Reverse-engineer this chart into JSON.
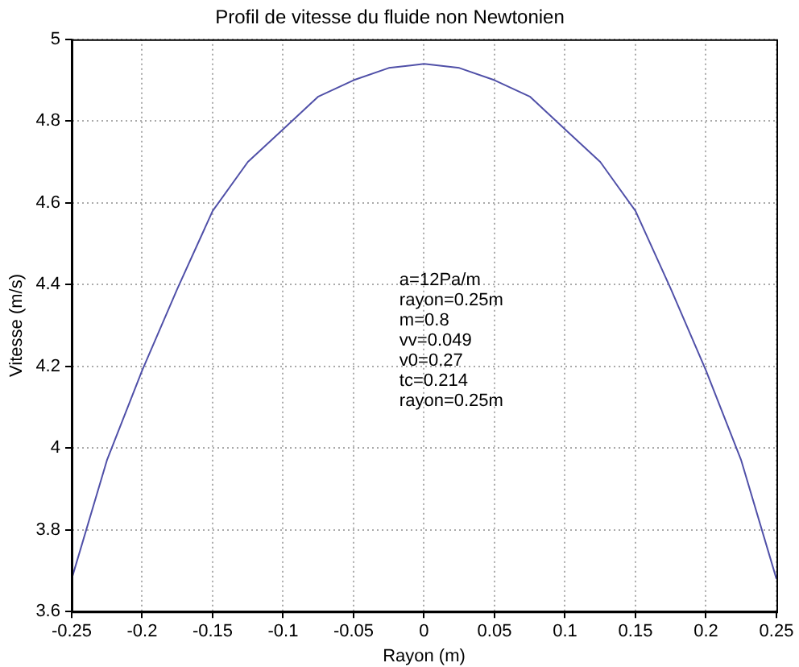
{
  "chart_data": {
    "type": "line",
    "title": "Profil de vitesse du fluide non Newtonien",
    "xlabel": "Rayon (m)",
    "ylabel": "Vitesse (m/s)",
    "x": [
      -0.25,
      -0.225,
      -0.2,
      -0.175,
      -0.15,
      -0.125,
      -0.1,
      -0.075,
      -0.05,
      -0.025,
      0,
      0.025,
      0.05,
      0.075,
      0.1,
      0.125,
      0.15,
      0.175,
      0.2,
      0.225,
      0.25
    ],
    "series": [
      {
        "color": "#5050a8",
        "values": [
          3.68,
          3.97,
          4.19,
          4.39,
          4.58,
          4.7,
          4.78,
          4.86,
          4.9,
          4.93,
          4.94,
          4.93,
          4.9,
          4.86,
          4.78,
          4.7,
          4.58,
          4.39,
          4.19,
          3.97,
          3.68
        ]
      }
    ],
    "xlim": [
      -0.25,
      0.25
    ],
    "xticks": [
      -0.25,
      -0.2,
      -0.15,
      -0.1,
      -0.05,
      0,
      0.05,
      0.1,
      0.15,
      0.2,
      0.25
    ],
    "ylim": [
      3.6,
      5
    ],
    "yticks": [
      3.6,
      3.8,
      4,
      4.2,
      4.4,
      4.6,
      4.8,
      5
    ],
    "grid": true,
    "legend": false,
    "marker": "none",
    "line_style": "solid",
    "annotations": [
      "a=12Pa/m",
      "rayon=0.25m",
      "m=0.8",
      "vv=0.049",
      "v0=0.27",
      "tc=0.214",
      "rayon=0.25m"
    ]
  }
}
